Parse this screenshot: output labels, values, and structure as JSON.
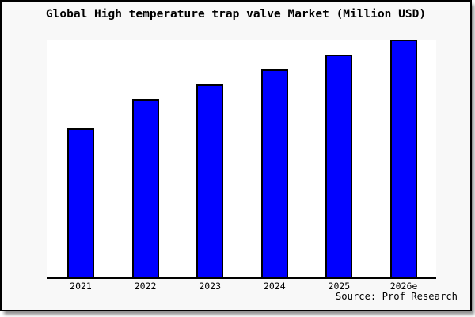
{
  "title": "Global High temperature trap valve Market (Million USD)",
  "source": {
    "text": "Source: Prof Research"
  },
  "colors": {
    "frame_background": "#f8f8f8",
    "frame_border": "#000000",
    "plot_background": "#ffffff",
    "bar_fill": "#0000ff",
    "bar_border": "#000000",
    "axis": "#000000",
    "text": "#000000"
  },
  "chart_data": {
    "type": "bar",
    "title": "Global High temperature trap valve Market (Million USD)",
    "categories": [
      "2021",
      "2022",
      "2023",
      "2024",
      "2025",
      "2026e"
    ],
    "values": [
      62.7,
      75.0,
      81.3,
      87.7,
      93.7,
      100.0
    ],
    "value_note": "No y-axis or data labels shown; values estimated from bar pixel heights, normalized so 2026e = 100",
    "xlabel": "",
    "ylabel": "",
    "ylim": [
      0,
      100
    ],
    "grid": false,
    "legend": false,
    "y_axis_visible": false,
    "x_axis_visible": true
  }
}
